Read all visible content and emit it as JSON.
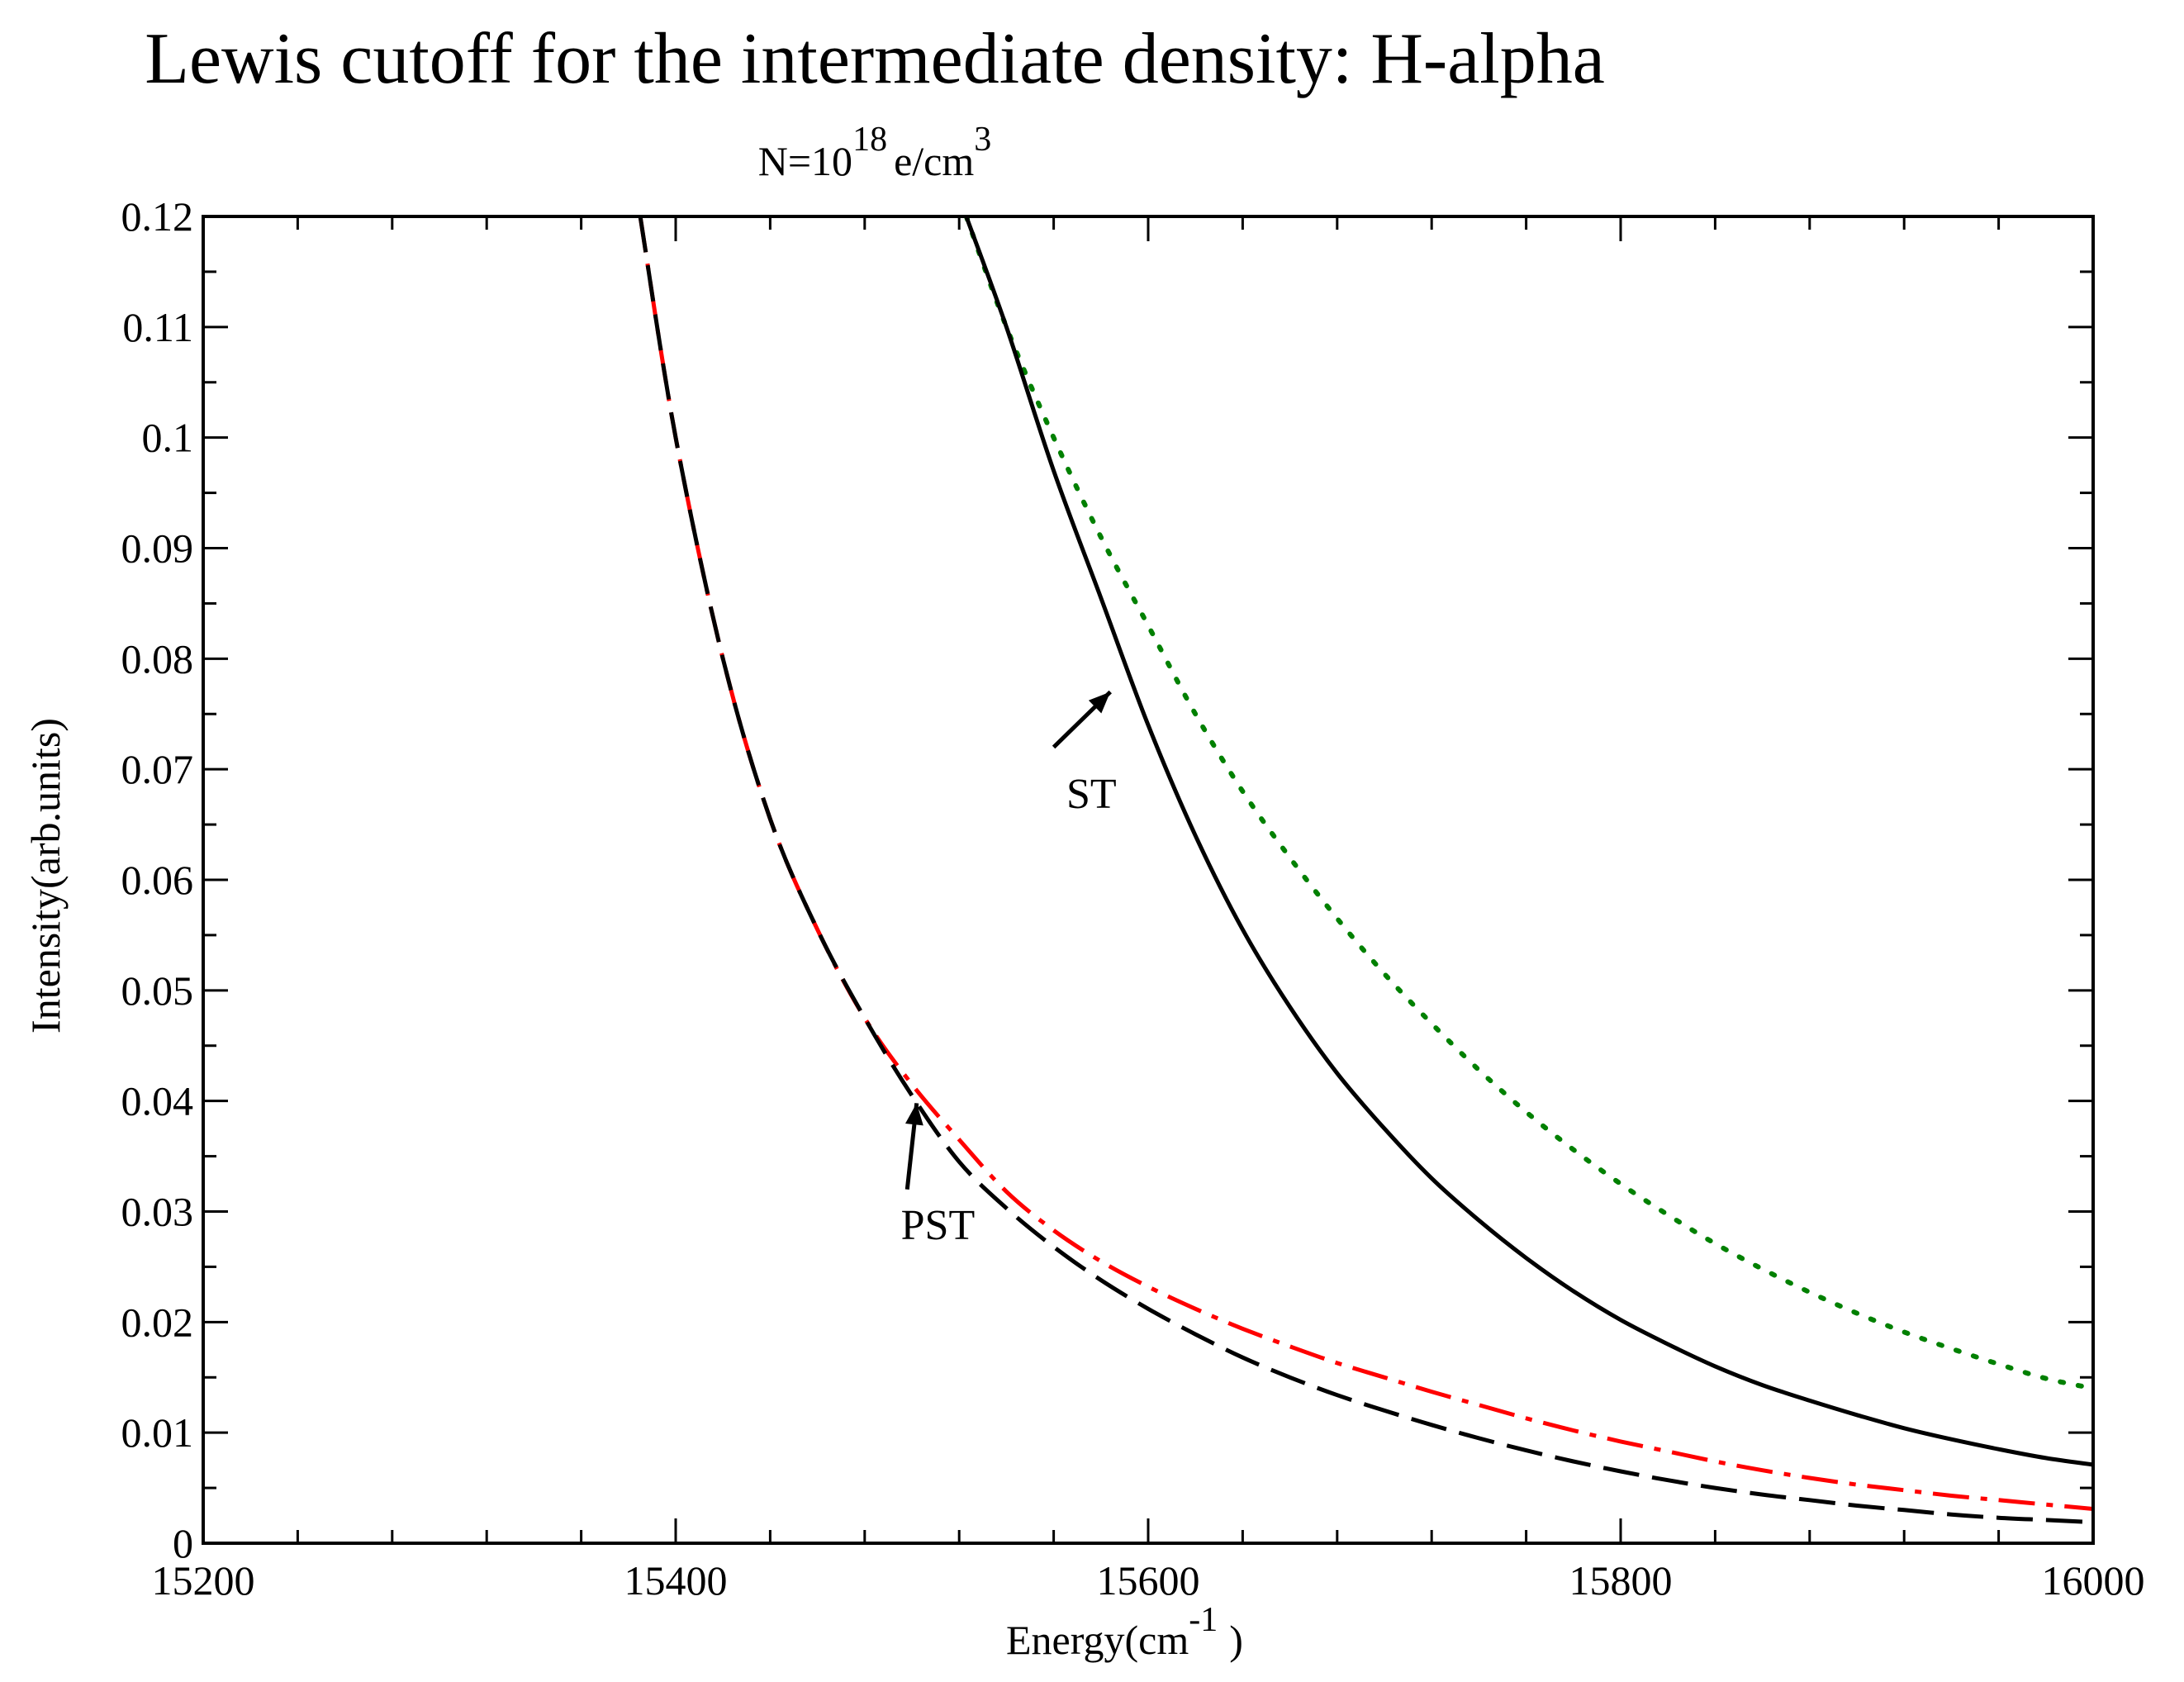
{
  "chart_data": {
    "type": "line",
    "title": "Lewis cutoff for the intermediate density: H-alpha",
    "subtitle": {
      "base": "N=10",
      "exponent": "18",
      "unit": "e/cm",
      "unit_exponent": "3"
    },
    "xlabel": {
      "base": "Energy(cm",
      "exponent": "-1",
      "close": ")"
    },
    "ylabel": "Intensity(arb.units)",
    "xlim": [
      15200,
      16000
    ],
    "ylim": [
      0,
      0.12
    ],
    "xticks": [
      15200,
      15400,
      15600,
      15800,
      16000
    ],
    "xtick_labels": [
      "15200",
      "15400",
      "15600",
      "15800",
      "16000"
    ],
    "yticks": [
      0,
      0.01,
      0.02,
      0.03,
      0.04,
      0.05,
      0.06,
      0.07,
      0.08,
      0.09,
      0.1,
      0.11,
      0.12
    ],
    "ytick_labels": [
      "0",
      "0.01",
      "0.02",
      "0.03",
      "0.04",
      "0.05",
      "0.06",
      "0.07",
      "0.08",
      "0.09",
      "0.1",
      "0.11",
      "0.12"
    ],
    "grid": false,
    "series": [
      {
        "name": "ST (dotted)",
        "style": "dotted",
        "color": "#008000",
        "x": [
          15523,
          15540,
          15560,
          15580,
          15600,
          15620,
          15640,
          15660,
          15680,
          15700,
          15720,
          15740,
          15760,
          15780,
          15800,
          15820,
          15840,
          15860,
          15880,
          15900,
          15920,
          15940,
          15960,
          15980,
          16000
        ],
        "y": [
          0.12,
          0.11,
          0.1,
          0.091,
          0.083,
          0.075,
          0.068,
          0.062,
          0.0565,
          0.0515,
          0.047,
          0.0428,
          0.039,
          0.0356,
          0.0325,
          0.0297,
          0.0271,
          0.0248,
          0.0227,
          0.0208,
          0.0191,
          0.0176,
          0.0162,
          0.0149,
          0.014
        ]
      },
      {
        "name": "ST",
        "style": "solid",
        "color": "#000000",
        "x": [
          15523,
          15540,
          15560,
          15580,
          15600,
          15620,
          15640,
          15660,
          15680,
          15700,
          15720,
          15740,
          15760,
          15780,
          15800,
          15820,
          15840,
          15860,
          15880,
          15900,
          15920,
          15940,
          15960,
          15980,
          16000
        ],
        "y": [
          0.12,
          0.11,
          0.097,
          0.0855,
          0.074,
          0.064,
          0.0555,
          0.0485,
          0.0425,
          0.0375,
          0.033,
          0.0292,
          0.0258,
          0.0228,
          0.0202,
          0.018,
          0.016,
          0.0143,
          0.0129,
          0.0116,
          0.0104,
          0.0094,
          0.0085,
          0.0077,
          0.0071
        ]
      },
      {
        "name": "PST (dash-dot)",
        "style": "dashdot",
        "color": "#ff0000",
        "x": [
          15385,
          15400,
          15420,
          15440,
          15460,
          15480,
          15500,
          15520,
          15540,
          15560,
          15580,
          15600,
          15620,
          15640,
          15660,
          15680,
          15700,
          15720,
          15740,
          15760,
          15780,
          15800,
          15820,
          15840,
          15860,
          15880,
          15900,
          15920,
          15940,
          15960,
          15980,
          16000
        ],
        "y": [
          0.12,
          0.1,
          0.08,
          0.0655,
          0.0555,
          0.0475,
          0.0415,
          0.0365,
          0.0318,
          0.0283,
          0.0255,
          0.0232,
          0.0212,
          0.0194,
          0.0178,
          0.0163,
          0.015,
          0.0137,
          0.0125,
          0.0113,
          0.0102,
          0.0092,
          0.0083,
          0.0074,
          0.0066,
          0.0059,
          0.0053,
          0.0048,
          0.0043,
          0.0039,
          0.0035,
          0.0031
        ]
      },
      {
        "name": "PST",
        "style": "dashed",
        "color": "#000000",
        "x": [
          15385,
          15400,
          15420,
          15440,
          15460,
          15480,
          15500,
          15520,
          15540,
          15560,
          15580,
          15600,
          15620,
          15640,
          15660,
          15680,
          15700,
          15720,
          15740,
          15760,
          15780,
          15800,
          15820,
          15840,
          15860,
          15880,
          15900,
          15920,
          15940,
          15960,
          15980,
          16000
        ],
        "y": [
          0.12,
          0.1,
          0.08,
          0.0655,
          0.0555,
          0.0475,
          0.0405,
          0.0345,
          0.0303,
          0.0268,
          0.0238,
          0.0212,
          0.0189,
          0.0168,
          0.015,
          0.0134,
          0.012,
          0.0107,
          0.0095,
          0.0084,
          0.0074,
          0.0065,
          0.0057,
          0.005,
          0.0044,
          0.0039,
          0.0034,
          0.003,
          0.0026,
          0.0023,
          0.0021,
          0.0019
        ]
      }
    ],
    "annotations": [
      {
        "text": "ST",
        "arrow_from": [
          15560,
          0.072
        ],
        "arrow_to": [
          15584,
          0.077
        ],
        "label_at": [
          15576,
          0.0665
        ]
      },
      {
        "text": "PST",
        "arrow_from": [
          15498,
          0.032
        ],
        "arrow_to": [
          15502,
          0.0398
        ],
        "label_at": [
          15511,
          0.0275
        ]
      }
    ]
  }
}
